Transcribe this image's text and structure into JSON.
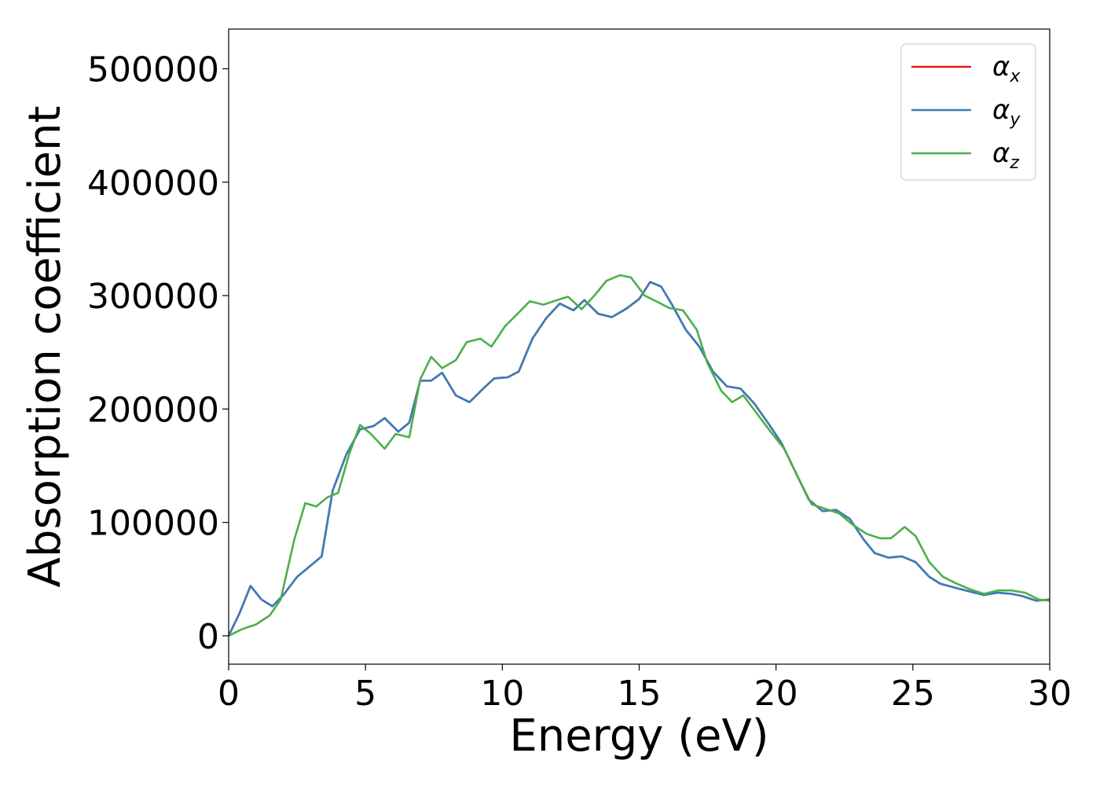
{
  "chart_data": {
    "type": "line",
    "title": "",
    "xlabel": "Energy (eV)",
    "ylabel": "Absorption coefficient",
    "xlim": [
      0,
      30
    ],
    "ylim": [
      -25000,
      535000
    ],
    "xticks": [
      0,
      5,
      10,
      15,
      20,
      25,
      30
    ],
    "yticks": [
      0,
      100000,
      200000,
      300000,
      400000,
      500000
    ],
    "xtick_labels": [
      "0",
      "5",
      "10",
      "15",
      "20",
      "25",
      "30"
    ],
    "ytick_labels": [
      "0",
      "100000",
      "200000",
      "300000",
      "400000",
      "500000"
    ],
    "grid": false,
    "legend_position": "top-right",
    "series": [
      {
        "name": "α",
        "sub": "x",
        "color": "#e41a1c",
        "points": [
          [
            0,
            0
          ],
          [
            0.4,
            20000
          ],
          [
            0.8,
            44000
          ],
          [
            1.2,
            32000
          ],
          [
            1.6,
            26000
          ],
          [
            2.0,
            36000
          ],
          [
            2.5,
            52000
          ],
          [
            3.0,
            62000
          ],
          [
            3.4,
            70000
          ],
          [
            3.8,
            128000
          ],
          [
            4.3,
            160000
          ],
          [
            4.8,
            182000
          ],
          [
            5.3,
            185000
          ],
          [
            5.7,
            192000
          ],
          [
            6.2,
            180000
          ],
          [
            6.6,
            188000
          ],
          [
            7.0,
            225000
          ],
          [
            7.4,
            225000
          ],
          [
            7.8,
            232000
          ],
          [
            8.3,
            212000
          ],
          [
            8.8,
            206000
          ],
          [
            9.3,
            218000
          ],
          [
            9.7,
            227000
          ],
          [
            10.2,
            228000
          ],
          [
            10.6,
            233000
          ],
          [
            11.1,
            262000
          ],
          [
            11.6,
            280000
          ],
          [
            12.1,
            293000
          ],
          [
            12.6,
            287000
          ],
          [
            13.0,
            296000
          ],
          [
            13.5,
            284000
          ],
          [
            14.0,
            281000
          ],
          [
            14.5,
            288000
          ],
          [
            15.0,
            297000
          ],
          [
            15.4,
            312000
          ],
          [
            15.8,
            308000
          ],
          [
            16.2,
            292000
          ],
          [
            16.7,
            270000
          ],
          [
            17.2,
            255000
          ],
          [
            17.7,
            233000
          ],
          [
            18.2,
            220000
          ],
          [
            18.7,
            218000
          ],
          [
            19.2,
            205000
          ],
          [
            19.7,
            188000
          ],
          [
            20.2,
            170000
          ],
          [
            20.7,
            145000
          ],
          [
            21.2,
            120000
          ],
          [
            21.7,
            110000
          ],
          [
            22.2,
            111000
          ],
          [
            22.7,
            103000
          ],
          [
            23.2,
            85000
          ],
          [
            23.6,
            73000
          ],
          [
            24.1,
            69000
          ],
          [
            24.6,
            70000
          ],
          [
            25.1,
            65000
          ],
          [
            25.6,
            52000
          ],
          [
            26.0,
            46000
          ],
          [
            26.6,
            42000
          ],
          [
            27.1,
            39000
          ],
          [
            27.6,
            36000
          ],
          [
            28.1,
            38000
          ],
          [
            28.6,
            37000
          ],
          [
            29.0,
            35000
          ],
          [
            29.5,
            31000
          ],
          [
            30.0,
            32000
          ]
        ]
      },
      {
        "name": "α",
        "sub": "y",
        "color": "#377eb8",
        "points": [
          [
            0,
            0
          ],
          [
            0.4,
            20000
          ],
          [
            0.8,
            44000
          ],
          [
            1.2,
            32000
          ],
          [
            1.6,
            26000
          ],
          [
            2.0,
            36000
          ],
          [
            2.5,
            52000
          ],
          [
            3.0,
            62000
          ],
          [
            3.4,
            70000
          ],
          [
            3.8,
            128000
          ],
          [
            4.3,
            160000
          ],
          [
            4.8,
            182000
          ],
          [
            5.3,
            185000
          ],
          [
            5.7,
            192000
          ],
          [
            6.2,
            180000
          ],
          [
            6.6,
            188000
          ],
          [
            7.0,
            225000
          ],
          [
            7.4,
            225000
          ],
          [
            7.8,
            232000
          ],
          [
            8.3,
            212000
          ],
          [
            8.8,
            206000
          ],
          [
            9.3,
            218000
          ],
          [
            9.7,
            227000
          ],
          [
            10.2,
            228000
          ],
          [
            10.6,
            233000
          ],
          [
            11.1,
            262000
          ],
          [
            11.6,
            280000
          ],
          [
            12.1,
            293000
          ],
          [
            12.6,
            287000
          ],
          [
            13.0,
            296000
          ],
          [
            13.5,
            284000
          ],
          [
            14.0,
            281000
          ],
          [
            14.5,
            288000
          ],
          [
            15.0,
            297000
          ],
          [
            15.4,
            312000
          ],
          [
            15.8,
            308000
          ],
          [
            16.2,
            292000
          ],
          [
            16.7,
            270000
          ],
          [
            17.2,
            255000
          ],
          [
            17.7,
            233000
          ],
          [
            18.2,
            220000
          ],
          [
            18.7,
            218000
          ],
          [
            19.2,
            205000
          ],
          [
            19.7,
            188000
          ],
          [
            20.2,
            170000
          ],
          [
            20.7,
            145000
          ],
          [
            21.2,
            120000
          ],
          [
            21.7,
            110000
          ],
          [
            22.2,
            111000
          ],
          [
            22.7,
            103000
          ],
          [
            23.2,
            85000
          ],
          [
            23.6,
            73000
          ],
          [
            24.1,
            69000
          ],
          [
            24.6,
            70000
          ],
          [
            25.1,
            65000
          ],
          [
            25.6,
            52000
          ],
          [
            26.0,
            46000
          ],
          [
            26.6,
            42000
          ],
          [
            27.1,
            39000
          ],
          [
            27.6,
            36000
          ],
          [
            28.1,
            38000
          ],
          [
            28.6,
            37000
          ],
          [
            29.0,
            35000
          ],
          [
            29.5,
            31000
          ],
          [
            30.0,
            32000
          ]
        ]
      },
      {
        "name": "α",
        "sub": "z",
        "color": "#4daf4a",
        "points": [
          [
            0,
            0
          ],
          [
            0.5,
            6000
          ],
          [
            1.0,
            10000
          ],
          [
            1.5,
            18000
          ],
          [
            1.9,
            32000
          ],
          [
            2.4,
            85000
          ],
          [
            2.8,
            117000
          ],
          [
            3.2,
            114000
          ],
          [
            3.6,
            122000
          ],
          [
            4.0,
            126000
          ],
          [
            4.4,
            160000
          ],
          [
            4.8,
            186000
          ],
          [
            5.2,
            178000
          ],
          [
            5.7,
            165000
          ],
          [
            6.1,
            178000
          ],
          [
            6.6,
            175000
          ],
          [
            7.0,
            226000
          ],
          [
            7.4,
            246000
          ],
          [
            7.8,
            236000
          ],
          [
            8.3,
            243000
          ],
          [
            8.7,
            259000
          ],
          [
            9.2,
            262000
          ],
          [
            9.6,
            255000
          ],
          [
            10.1,
            273000
          ],
          [
            10.6,
            285000
          ],
          [
            11.0,
            295000
          ],
          [
            11.5,
            292000
          ],
          [
            12.0,
            296000
          ],
          [
            12.4,
            299000
          ],
          [
            12.9,
            288000
          ],
          [
            13.4,
            301000
          ],
          [
            13.8,
            313000
          ],
          [
            14.3,
            318000
          ],
          [
            14.7,
            316000
          ],
          [
            15.2,
            300000
          ],
          [
            15.7,
            294000
          ],
          [
            16.1,
            289000
          ],
          [
            16.6,
            287000
          ],
          [
            17.1,
            270000
          ],
          [
            17.5,
            240000
          ],
          [
            18.0,
            216000
          ],
          [
            18.4,
            206000
          ],
          [
            18.8,
            212000
          ],
          [
            19.3,
            196000
          ],
          [
            19.8,
            180000
          ],
          [
            20.3,
            165000
          ],
          [
            20.8,
            140000
          ],
          [
            21.3,
            116000
          ],
          [
            21.8,
            112000
          ],
          [
            22.3,
            108000
          ],
          [
            22.8,
            98000
          ],
          [
            23.3,
            90000
          ],
          [
            23.8,
            86000
          ],
          [
            24.2,
            86000
          ],
          [
            24.7,
            96000
          ],
          [
            25.1,
            88000
          ],
          [
            25.6,
            65000
          ],
          [
            26.1,
            52000
          ],
          [
            26.6,
            46000
          ],
          [
            27.1,
            41000
          ],
          [
            27.6,
            37000
          ],
          [
            28.1,
            40000
          ],
          [
            28.6,
            40000
          ],
          [
            29.1,
            38000
          ],
          [
            29.6,
            32000
          ],
          [
            30.0,
            31000
          ]
        ]
      }
    ]
  }
}
